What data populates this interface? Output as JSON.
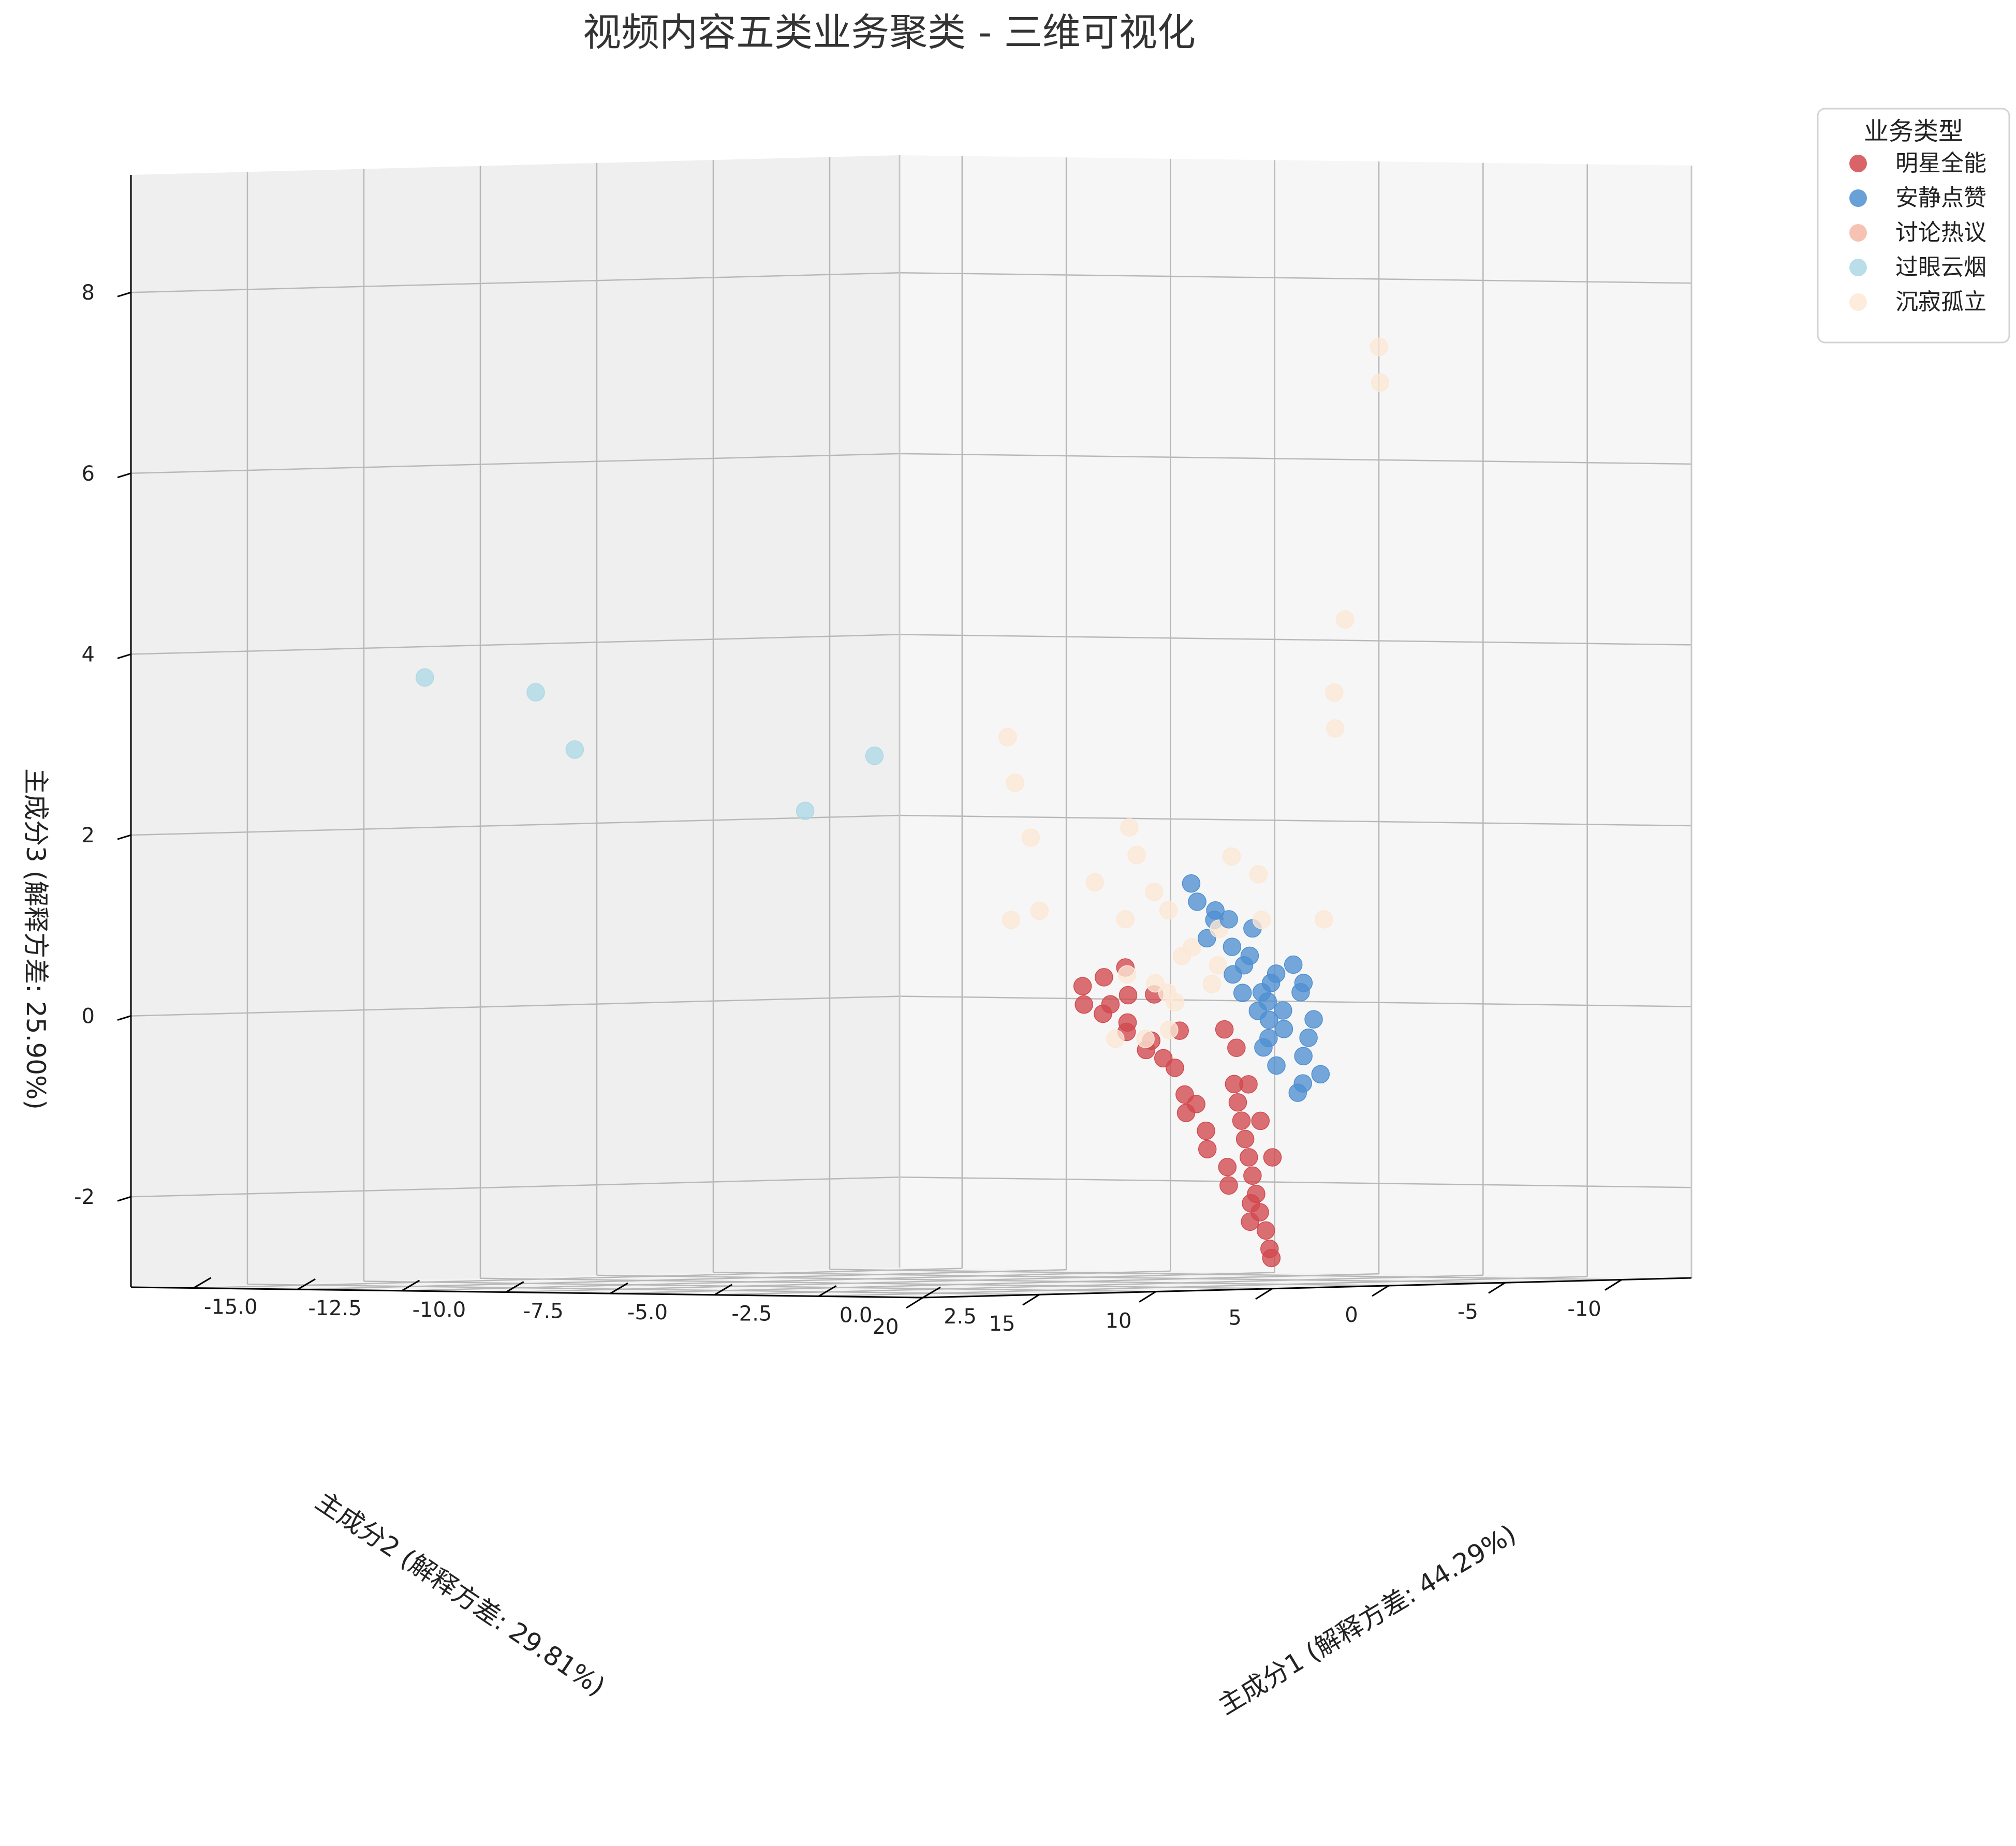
{
  "chart_data": {
    "type": "scatter",
    "title": "视频内容五类业务聚类 - 三维可视化",
    "xlabel": "主成分1 (解释方差: 44.29%)",
    "ylabel": "主成分2 (解释方差: 29.81%)",
    "zlabel": "主成分3 (解释方差: 25.90%)",
    "x_ticks": [
      "2.5",
      "0.0",
      "-2.5",
      "-5.0",
      "-7.5",
      "-10.0",
      "-12.5",
      "-15.0"
    ],
    "y_ticks": [
      "-10",
      "-5",
      "0",
      "5",
      "10",
      "15",
      "20"
    ],
    "z_ticks": [
      "-2",
      "0",
      "2",
      "4",
      "6",
      "8"
    ],
    "xlim": [
      -16.5,
      2.5
    ],
    "ylim": [
      -13,
      20
    ],
    "zlim": [
      -3.0,
      9.3
    ],
    "grid": true,
    "legend_title": "业务类型",
    "legend_position": "top-right",
    "series": [
      {
        "name": "明星全能",
        "color": "#d1494e",
        "points": [
          [
            0.2,
            1.0,
            -2.6
          ],
          [
            0.0,
            0.8,
            -2.4
          ],
          [
            -0.2,
            0.7,
            -2.2
          ],
          [
            -0.4,
            0.5,
            -2.0
          ],
          [
            -0.6,
            0.3,
            -1.8
          ],
          [
            -0.8,
            0.1,
            -1.6
          ],
          [
            -1.0,
            -0.1,
            -1.4
          ],
          [
            -1.2,
            -0.3,
            -1.2
          ],
          [
            -1.4,
            -0.5,
            -1.0
          ],
          [
            -1.6,
            -0.7,
            -0.8
          ],
          [
            0.3,
            1.1,
            -2.7
          ],
          [
            -0.1,
            1.3,
            -2.3
          ],
          [
            -0.5,
            1.5,
            -1.9
          ],
          [
            -0.9,
            1.7,
            -1.5
          ],
          [
            -1.3,
            1.9,
            -1.1
          ],
          [
            -0.3,
            0.9,
            -2.1
          ],
          [
            -0.7,
            1.2,
            -1.7
          ],
          [
            -1.1,
            1.4,
            -1.3
          ],
          [
            -1.5,
            1.6,
            -0.9
          ],
          [
            -1.9,
            1.8,
            -0.5
          ],
          [
            -0.4,
            -0.2,
            -1.6
          ],
          [
            -0.8,
            -0.4,
            -1.2
          ],
          [
            -1.2,
            -0.6,
            -0.8
          ],
          [
            -1.6,
            -0.8,
            -0.4
          ],
          [
            -2.0,
            -1.0,
            -0.2
          ],
          [
            -1.0,
            2.0,
            -1.0
          ],
          [
            -1.4,
            2.2,
            -0.6
          ],
          [
            -1.8,
            2.5,
            -0.3
          ],
          [
            -2.2,
            2.8,
            -0.1
          ],
          [
            -2.5,
            3.0,
            0.1
          ],
          [
            -2.0,
            3.2,
            -0.2
          ],
          [
            -2.4,
            3.5,
            0.0
          ],
          [
            -2.8,
            3.6,
            0.1
          ],
          [
            -1.7,
            2.9,
            -0.4
          ],
          [
            -2.3,
            2.6,
            0.2
          ],
          [
            -3.0,
            3.3,
            0.3
          ],
          [
            -2.6,
            3.1,
            0.4
          ],
          [
            -1.9,
            1.1,
            -0.2
          ],
          [
            -2.4,
            1.3,
            0.2
          ],
          [
            -2.7,
            2.0,
            0.5
          ]
        ]
      },
      {
        "name": "安静点赞",
        "color": "#4f8fd1",
        "points": [
          [
            -1.5,
            -2.0,
            -0.3
          ],
          [
            -1.8,
            -2.5,
            0.1
          ],
          [
            -2.0,
            -3.0,
            0.3
          ],
          [
            -1.2,
            -1.8,
            -0.6
          ],
          [
            -1.6,
            -2.8,
            0.0
          ],
          [
            -2.2,
            -2.2,
            0.5
          ],
          [
            -1.0,
            -2.6,
            -0.5
          ],
          [
            -1.4,
            -3.2,
            0.2
          ],
          [
            -2.4,
            -2.8,
            0.6
          ],
          [
            -0.8,
            -2.0,
            -0.9
          ],
          [
            -1.9,
            -1.6,
            0.2
          ],
          [
            -1.3,
            -2.3,
            -0.2
          ],
          [
            -2.1,
            -3.4,
            0.4
          ],
          [
            -1.7,
            -1.9,
            0.0
          ],
          [
            -1.1,
            -3.0,
            -0.3
          ],
          [
            -2.6,
            -2.4,
            0.7
          ],
          [
            -0.9,
            -2.4,
            -0.8
          ],
          [
            -1.5,
            -3.5,
            0.3
          ],
          [
            -2.3,
            -1.9,
            0.4
          ],
          [
            -1.6,
            -2.2,
            -0.1
          ],
          [
            -2.8,
            -2.0,
            1.0
          ],
          [
            -3.1,
            -1.8,
            1.2
          ],
          [
            -2.5,
            -3.1,
            0.9
          ],
          [
            -1.2,
            -3.4,
            -0.1
          ],
          [
            -2.0,
            -2.6,
            0.2
          ],
          [
            -0.7,
            -2.8,
            -0.7
          ],
          [
            -1.8,
            -3.6,
            0.5
          ],
          [
            -2.7,
            -1.5,
            0.8
          ],
          [
            -3.0,
            -2.4,
            1.1
          ],
          [
            -1.4,
            -1.6,
            -0.4
          ],
          [
            -3.3,
            -1.9,
            1.4
          ],
          [
            -2.9,
            -2.8,
            1.0
          ]
        ]
      },
      {
        "name": "讨论热议",
        "color": "#f4b9a4",
        "points": []
      },
      {
        "name": "过眼云烟",
        "color": "#add8e6",
        "points": [
          [
            -14.5,
            6.2,
            3.5
          ],
          [
            -14.2,
            11.5,
            3.7
          ],
          [
            -12.0,
            9.0,
            2.9
          ],
          [
            -9.6,
            3.4,
            2.2
          ],
          [
            -9.0,
            1.5,
            2.8
          ]
        ]
      },
      {
        "name": "沉寂孤立",
        "color": "#fde8d6",
        "points": [
          [
            -2.2,
            -8.0,
            7.3
          ],
          [
            -2.4,
            -8.4,
            6.9
          ],
          [
            -1.9,
            -6.0,
            4.3
          ],
          [
            -1.6,
            -5.0,
            3.5
          ],
          [
            -1.8,
            -5.4,
            3.1
          ],
          [
            -2.5,
            -2.2,
            1.7
          ],
          [
            -2.3,
            -3.0,
            1.5
          ],
          [
            -1.4,
            -4.2,
            1.0
          ],
          [
            -2.0,
            -2.6,
            1.0
          ],
          [
            -2.8,
            -2.2,
            0.9
          ],
          [
            -3.0,
            -1.4,
            0.7
          ],
          [
            -2.6,
            -1.8,
            0.5
          ],
          [
            -3.3,
            -1.5,
            0.6
          ],
          [
            -3.2,
            -0.7,
            0.2
          ],
          [
            -3.9,
            -2.0,
            1.1
          ],
          [
            -4.3,
            -2.1,
            1.3
          ],
          [
            -5.0,
            -2.6,
            1.7
          ],
          [
            -5.4,
            -3.0,
            2.0
          ],
          [
            -4.0,
            -0.4,
            0.4
          ],
          [
            -4.6,
            -1.4,
            1.0
          ],
          [
            -3.6,
            -0.9,
            0.3
          ],
          [
            -3.0,
            0.6,
            -0.3
          ],
          [
            -2.6,
            0.3,
            -0.2
          ],
          [
            -3.5,
            1.0,
            -0.3
          ],
          [
            -2.9,
            -0.5,
            0.1
          ],
          [
            -2.3,
            -1.0,
            0.3
          ],
          [
            -5.6,
            0.5,
            1.1
          ],
          [
            -6.2,
            -0.2,
            1.9
          ],
          [
            -6.8,
            -0.6,
            2.5
          ],
          [
            -7.2,
            -1.0,
            3.0
          ],
          [
            -5.5,
            -1.7,
            1.4
          ],
          [
            -6.0,
            1.0,
            1.0
          ]
        ]
      }
    ]
  }
}
